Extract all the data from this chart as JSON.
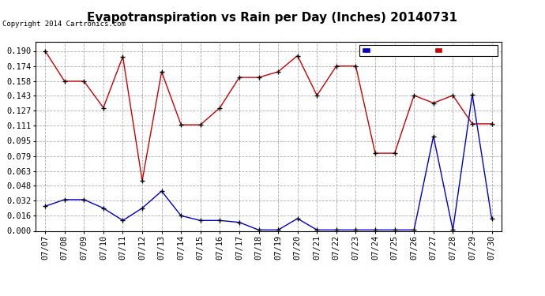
{
  "title": "Evapotranspiration vs Rain per Day (Inches) 20140731",
  "copyright": "Copyright 2014 Cartronics.com",
  "dates": [
    "07/07",
    "07/08",
    "07/09",
    "07/10",
    "07/11",
    "07/12",
    "07/13",
    "07/14",
    "07/15",
    "07/16",
    "07/17",
    "07/18",
    "07/19",
    "07/20",
    "07/21",
    "07/22",
    "07/23",
    "07/24",
    "07/25",
    "07/26",
    "07/27",
    "07/28",
    "07/29",
    "07/30"
  ],
  "et": [
    0.19,
    0.158,
    0.158,
    0.13,
    0.184,
    0.053,
    0.168,
    0.112,
    0.112,
    0.13,
    0.162,
    0.162,
    0.168,
    0.185,
    0.143,
    0.174,
    0.174,
    0.082,
    0.082,
    0.143,
    0.135,
    0.143,
    0.113,
    0.113
  ],
  "rain": [
    0.026,
    0.033,
    0.033,
    0.024,
    0.011,
    0.024,
    0.042,
    0.016,
    0.011,
    0.011,
    0.009,
    0.001,
    0.001,
    0.013,
    0.001,
    0.001,
    0.001,
    0.001,
    0.001,
    0.001,
    0.1,
    0.001,
    0.144,
    0.013
  ],
  "ylim": [
    0.0,
    0.2
  ],
  "yticks": [
    0.0,
    0.016,
    0.032,
    0.048,
    0.063,
    0.079,
    0.095,
    0.111,
    0.127,
    0.143,
    0.158,
    0.174,
    0.19
  ],
  "rain_color": "#0000CC",
  "et_color": "#CC0000",
  "bg_color": "#FFFFFF",
  "grid_color": "#AAAAAA",
  "legend_rain_bg": "#0000CC",
  "legend_et_bg": "#CC0000",
  "title_fontsize": 11,
  "tick_fontsize": 7.5,
  "copyright_fontsize": 6.5
}
